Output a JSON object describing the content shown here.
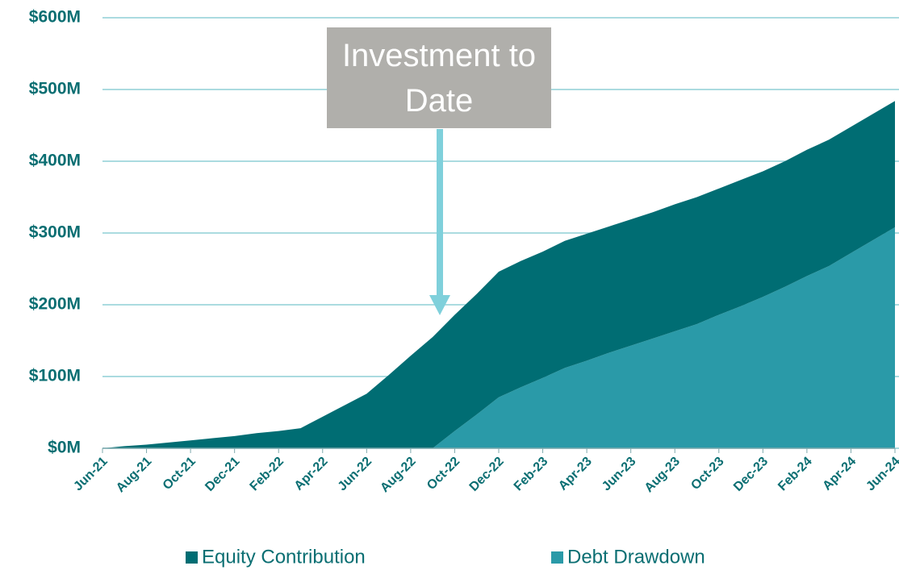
{
  "chart_data": {
    "type": "stacked-area",
    "categories": [
      "Jun-21",
      null,
      "Aug-21",
      null,
      "Oct-21",
      null,
      "Dec-21",
      null,
      "Feb-22",
      null,
      "Apr-22",
      null,
      "Jun-22",
      null,
      "Aug-22",
      null,
      "Oct-22",
      null,
      "Dec-22",
      null,
      "Feb-23",
      null,
      "Apr-23",
      null,
      "Jun-23",
      null,
      "Aug-23",
      null,
      "Oct-23",
      null,
      "Dec-23",
      null,
      "Feb-24",
      null,
      "Apr-24",
      null,
      "Jun-24"
    ],
    "series": [
      {
        "name": "Equity Contribution",
        "color": "#006d73",
        "values": [
          0,
          3,
          5,
          8,
          11,
          14,
          17,
          21,
          24,
          28,
          44,
          60,
          76,
          102,
          129,
          155,
          162,
          168,
          175,
          176,
          176,
          177,
          177,
          176,
          176,
          176,
          177,
          177,
          176,
          176,
          175,
          175,
          176,
          176,
          176,
          176,
          176
        ]
      },
      {
        "name": "Debt Drawdown",
        "color": "#2a9aa8",
        "values": [
          0,
          0,
          0,
          0,
          0,
          0,
          0,
          0,
          0,
          0,
          0,
          0,
          0,
          0,
          0,
          0,
          24,
          47,
          71,
          85,
          98,
          112,
          122,
          133,
          143,
          153,
          163,
          173,
          186,
          198,
          211,
          225,
          240,
          254,
          272,
          290,
          308
        ]
      }
    ],
    "ylim": [
      0,
      600
    ],
    "yticks": [
      {
        "value": 0,
        "label": "$0M"
      },
      {
        "value": 100,
        "label": "$100M"
      },
      {
        "value": 200,
        "label": "$200M"
      },
      {
        "value": 300,
        "label": "$300M"
      },
      {
        "value": 400,
        "label": "$400M"
      },
      {
        "value": 500,
        "label": "$500M"
      },
      {
        "value": 600,
        "label": "$600M"
      }
    ],
    "grid": true,
    "annotation": "Investment to Date"
  }
}
